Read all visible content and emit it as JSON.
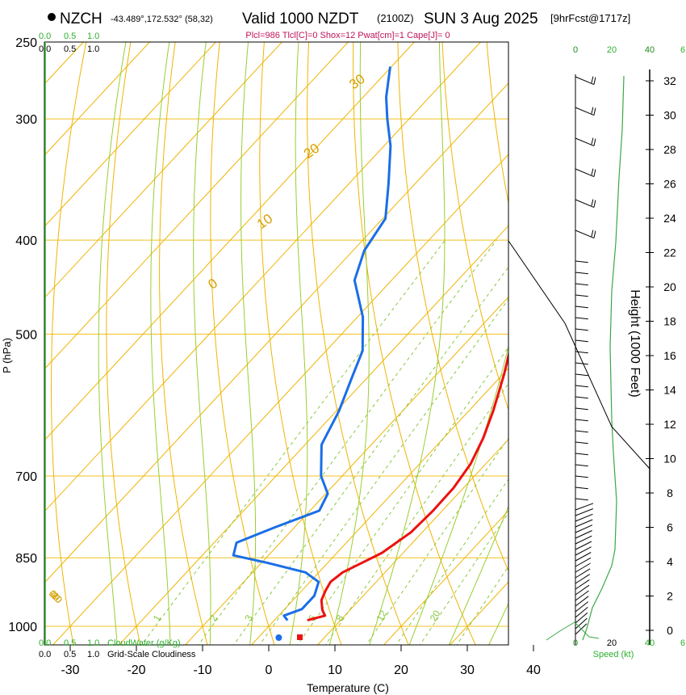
{
  "header": {
    "station": "NZCH",
    "coords": "-43.489°,172.532° (58,32)",
    "valid": "Valid 1000 NZDT",
    "zulu": "(2100Z)",
    "date": "SUN 3 Aug 2025",
    "forecast": "[9hrFcst@1717z]",
    "params": "Plcl=986 Tlcl[C]=0 Shox=12 Pwat[cm]=1 Cape[J]= 0"
  },
  "chart_data": {
    "type": "line",
    "title": "Skew-T sounding",
    "xlabel": "Temperature (C)",
    "ylabel": "P (hPa)",
    "right_axis_label": "Height (1000 Feet)",
    "x_ticks": [
      "-30",
      "-20",
      "-10",
      "0",
      "10",
      "20",
      "30",
      "40"
    ],
    "x_tick_values": [
      -30,
      -20,
      -10,
      0,
      10,
      20,
      30,
      40
    ],
    "p_ticks": [
      "250",
      "300",
      "400",
      "500",
      "700",
      "850",
      "1000"
    ],
    "p_tick_values": [
      250,
      300,
      400,
      500,
      700,
      850,
      1000
    ],
    "height_ticks": [
      "0",
      "2",
      "4",
      "6",
      "8",
      "10",
      "12",
      "14",
      "16",
      "18",
      "20",
      "22",
      "24",
      "26",
      "28",
      "30",
      "32"
    ],
    "height_tick_values": [
      0,
      2,
      4,
      6,
      8,
      10,
      12,
      14,
      16,
      18,
      20,
      22,
      24,
      26,
      28,
      30,
      32
    ],
    "isotherm_labels": [
      "10",
      "0",
      "-10",
      "-20",
      "-30"
    ],
    "isotherm_label_values": [
      10,
      0,
      -10,
      -20,
      -30
    ],
    "theta_labels": [
      "0",
      "10",
      "20",
      "30"
    ],
    "theta_label_values": [
      0,
      10,
      20,
      30
    ],
    "mixing_ratio_labels": [
      "1",
      "2",
      "3",
      "6",
      "8",
      "12",
      "20"
    ],
    "mixing_ratio_label_values": [
      1,
      2,
      3,
      6,
      8,
      12,
      20
    ],
    "cloud_axis": {
      "green_labels": [
        "0.0",
        "0.5",
        "1.0"
      ],
      "black_labels": [
        "0.0",
        "0.5",
        "1.0"
      ],
      "cloudwater_label": "CloudWater (g/Kg)",
      "cloudiness_label": "Grid-Scale Cloudiness"
    },
    "speed_axis": {
      "dark_labels": [
        "0",
        "20",
        "40"
      ],
      "light_labels": [
        "20",
        "40",
        "6"
      ],
      "label": "Speed (kt)"
    },
    "series": [
      {
        "name": "Temperature",
        "color": "#ee1010",
        "points": [
          [
            986,
            5.0
          ],
          [
            975,
            7.0
          ],
          [
            962,
            5.8
          ],
          [
            940,
            4.3
          ],
          [
            920,
            3.6
          ],
          [
            900,
            3.1
          ],
          [
            880,
            3.6
          ],
          [
            860,
            5.2
          ],
          [
            840,
            6.8
          ],
          [
            800,
            8.3
          ],
          [
            760,
            8.6
          ],
          [
            720,
            8.5
          ],
          [
            680,
            7.7
          ],
          [
            640,
            6.0
          ],
          [
            600,
            3.7
          ],
          [
            550,
            0.2
          ],
          [
            500,
            -4.0
          ],
          [
            460,
            -7.8
          ],
          [
            420,
            -11.8
          ],
          [
            390,
            -15.2
          ],
          [
            360,
            -19.7
          ],
          [
            330,
            -24.3
          ],
          [
            300,
            -29.1
          ],
          [
            280,
            -32.7
          ],
          [
            265,
            -35.8
          ]
        ]
      },
      {
        "name": "Dewpoint",
        "color": "#1a6ee8",
        "points": [
          [
            986,
            2.0
          ],
          [
            975,
            0.8
          ],
          [
            960,
            2.6
          ],
          [
            930,
            2.6
          ],
          [
            900,
            1.3
          ],
          [
            880,
            -2.0
          ],
          [
            860,
            -9.2
          ],
          [
            845,
            -15.3
          ],
          [
            820,
            -16.6
          ],
          [
            790,
            -12.9
          ],
          [
            760,
            -8.6
          ],
          [
            730,
            -9.7
          ],
          [
            700,
            -13.2
          ],
          [
            650,
            -17.5
          ],
          [
            600,
            -19.6
          ],
          [
            550,
            -22.6
          ],
          [
            520,
            -24.5
          ],
          [
            480,
            -29.2
          ],
          [
            440,
            -35.6
          ],
          [
            410,
            -38.3
          ],
          [
            380,
            -39.6
          ],
          [
            350,
            -44.0
          ],
          [
            320,
            -49.0
          ],
          [
            300,
            -53.3
          ],
          [
            285,
            -56.5
          ],
          [
            265,
            -60.2
          ]
        ]
      }
    ],
    "surface_markers": [
      {
        "name": "surface-temperature",
        "p": 1000,
        "t": 5.0,
        "color": "#ee1010"
      },
      {
        "name": "surface-dewpoint",
        "p": 1000,
        "t": 2.0,
        "color": "#1a6ee8"
      }
    ]
  }
}
